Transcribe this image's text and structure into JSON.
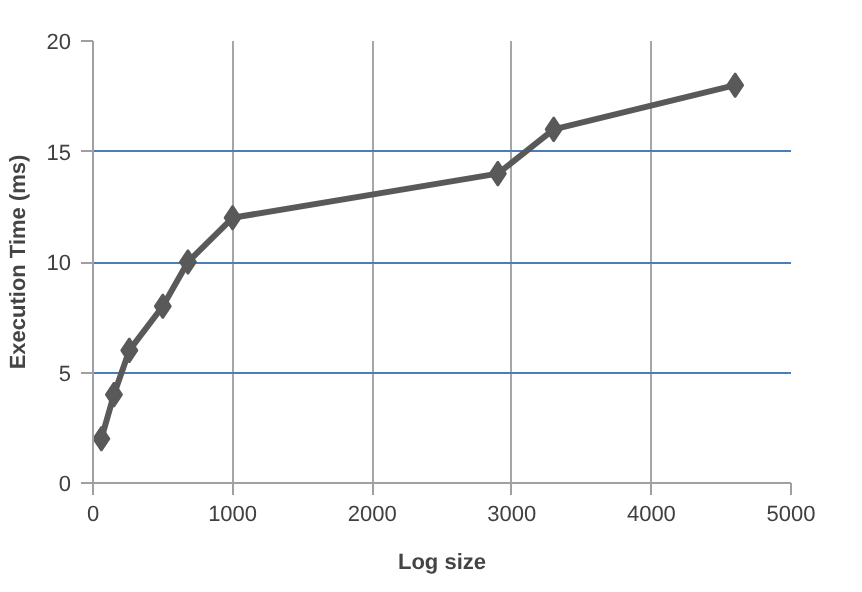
{
  "chart_data": {
    "type": "line",
    "xlabel": "Log size",
    "ylabel": "Execution Time (ms)",
    "x": [
      60,
      150,
      260,
      500,
      680,
      1000,
      2900,
      3300,
      4600
    ],
    "series": [
      {
        "color": "#595959",
        "values": [
          2,
          4,
          6,
          8,
          10,
          12,
          14,
          16,
          18
        ]
      }
    ],
    "xlim": [
      0,
      5000
    ],
    "xticks": [
      0,
      1000,
      2000,
      3000,
      4000,
      5000
    ],
    "ylim": [
      0,
      20
    ],
    "yticks": [
      0,
      5,
      10,
      15,
      20
    ],
    "grid": true,
    "marker": "diamond",
    "line_style": "solid"
  }
}
